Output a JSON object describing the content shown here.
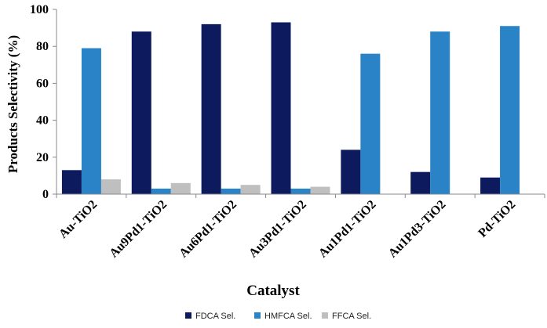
{
  "chart_data": {
    "type": "bar",
    "title": "",
    "xlabel": "Catalyst",
    "ylabel": "Products Selectivity (%)",
    "ylim": [
      0,
      100
    ],
    "yticks": [
      "0",
      "20",
      "40",
      "60",
      "80",
      "100"
    ],
    "ytick_values": [
      0,
      20,
      40,
      60,
      80,
      100
    ],
    "grid": false,
    "legend_position": "bottom",
    "categories": [
      "Au-TiO2",
      "Au9Pd1-TiO2",
      "Au6Pd1-TiO2",
      "Au3Pd1-TiO2",
      "Au1Pd1-TiO2",
      "Au1Pd3-TiO2",
      "Pd-TiO2"
    ],
    "series": [
      {
        "name": "FDCA Sel.",
        "color": "#0d1b5e",
        "values": [
          13,
          88,
          92,
          93,
          24,
          12,
          9
        ]
      },
      {
        "name": "HMFCA Sel.",
        "color": "#2983c6",
        "values": [
          79,
          3,
          3,
          3,
          76,
          88,
          91
        ]
      },
      {
        "name": "FFCA Sel.",
        "color": "#bfbfbf",
        "values": [
          8,
          6,
          5,
          4,
          0,
          0,
          0
        ]
      }
    ]
  }
}
